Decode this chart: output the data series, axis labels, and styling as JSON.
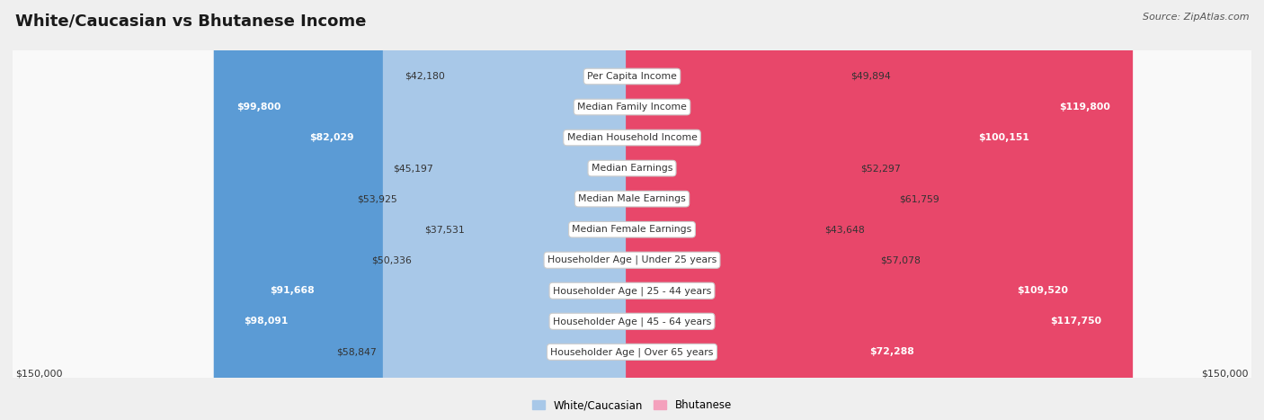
{
  "title": "White/Caucasian vs Bhutanese Income",
  "source": "Source: ZipAtlas.com",
  "categories": [
    "Per Capita Income",
    "Median Family Income",
    "Median Household Income",
    "Median Earnings",
    "Median Male Earnings",
    "Median Female Earnings",
    "Householder Age | Under 25 years",
    "Householder Age | 25 - 44 years",
    "Householder Age | 45 - 64 years",
    "Householder Age | Over 65 years"
  ],
  "white_values": [
    42180,
    99800,
    82029,
    45197,
    53925,
    37531,
    50336,
    91668,
    98091,
    58847
  ],
  "bhutanese_values": [
    49894,
    119800,
    100151,
    52297,
    61759,
    43648,
    57078,
    109520,
    117750,
    72288
  ],
  "white_labels": [
    "$42,180",
    "$99,800",
    "$82,029",
    "$45,197",
    "$53,925",
    "$37,531",
    "$50,336",
    "$91,668",
    "$98,091",
    "$58,847"
  ],
  "bhutanese_labels": [
    "$49,894",
    "$119,800",
    "$100,151",
    "$52,297",
    "$61,759",
    "$43,648",
    "$57,078",
    "$109,520",
    "$117,750",
    "$72,288"
  ],
  "white_color_large": "#5b9bd5",
  "white_color_small": "#a8c8e8",
  "bhutanese_color_large": "#e8476a",
  "bhutanese_color_small": "#f4a0bc",
  "white_large_threshold": 70000,
  "bhutanese_large_threshold": 70000,
  "max_value": 150000,
  "xlabel_left": "$150,000",
  "xlabel_right": "$150,000",
  "legend_white": "White/Caucasian",
  "legend_bhutanese": "Bhutanese",
  "background_color": "#efefef",
  "row_bg_color": "#f7f7f7",
  "title_fontsize": 13,
  "cat_fontsize": 7.8,
  "val_fontsize": 7.8,
  "source_fontsize": 8
}
